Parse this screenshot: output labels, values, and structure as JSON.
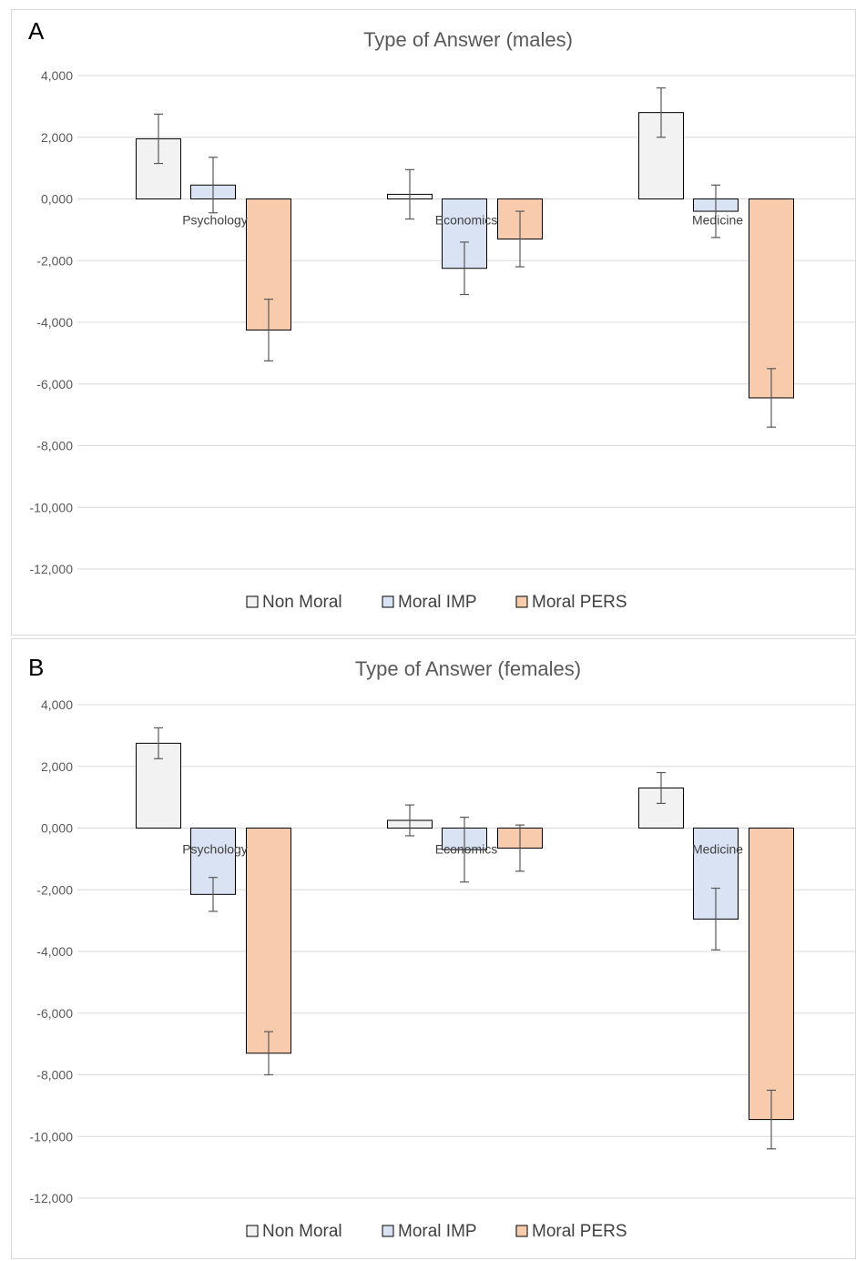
{
  "chart_data": [
    {
      "panel_label": "A",
      "type": "bar",
      "title": "Type of Answer (males)",
      "xlabel": "",
      "ylabel": "",
      "ylim": [
        -12000,
        4000
      ],
      "yticks": [
        4000,
        2000,
        0,
        -2000,
        -4000,
        -6000,
        -8000,
        -10000,
        -12000
      ],
      "ytick_labels": [
        "4,000",
        "2,000",
        "0,000",
        "-2,000",
        "-4,000",
        "-6,000",
        "-8,000",
        "-10,000",
        "-12,000"
      ],
      "categories": [
        "Psychology",
        "Economics",
        "Medicine"
      ],
      "series": [
        {
          "name": "Non Moral",
          "color": "#f2f2f2",
          "values": [
            1950,
            150,
            2800
          ],
          "err": [
            800,
            800,
            800
          ]
        },
        {
          "name": "Moral IMP",
          "color": "#dae3f3",
          "values": [
            450,
            -2250,
            -400
          ],
          "err": [
            900,
            850,
            850
          ]
        },
        {
          "name": "Moral PERS",
          "color": "#f8cbad",
          "values": [
            -4250,
            -1300,
            -6450
          ],
          "err": [
            1000,
            900,
            950
          ]
        }
      ],
      "grid": true,
      "legend_position": "bottom"
    },
    {
      "panel_label": "B",
      "type": "bar",
      "title": "Type of Answer (females)",
      "xlabel": "",
      "ylabel": "",
      "ylim": [
        -12000,
        4000
      ],
      "yticks": [
        4000,
        2000,
        0,
        -2000,
        -4000,
        -6000,
        -8000,
        -10000,
        -12000
      ],
      "ytick_labels": [
        "4,000",
        "2,000",
        "0,000",
        "-2,000",
        "-4,000",
        "-6,000",
        "-8,000",
        "-10,000",
        "-12,000"
      ],
      "categories": [
        "Psychology",
        "Economics",
        "Medicine"
      ],
      "series": [
        {
          "name": "Non Moral",
          "color": "#f2f2f2",
          "values": [
            2750,
            250,
            1300
          ],
          "err": [
            500,
            500,
            500
          ]
        },
        {
          "name": "Moral IMP",
          "color": "#dae3f3",
          "values": [
            -2150,
            -700,
            -2950
          ],
          "err": [
            550,
            1050,
            1000
          ]
        },
        {
          "name": "Moral PERS",
          "color": "#f8cbad",
          "values": [
            -7300,
            -650,
            -9450
          ],
          "err": [
            700,
            750,
            950
          ]
        }
      ],
      "grid": true,
      "legend_position": "bottom"
    }
  ]
}
